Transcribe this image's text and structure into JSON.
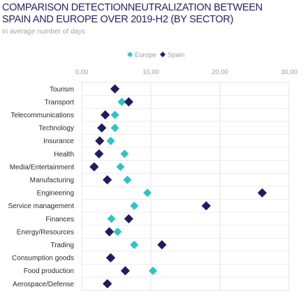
{
  "chart_data": {
    "type": "scatter",
    "title": "COMPARISON DETECTIONNEUTRALIZATION BETWEEN\nSPAIN AND EUROPE OVER 2019-H2 (BY SECTOR)",
    "subtitle": "In average number of days",
    "xlim": [
      0,
      30
    ],
    "x_ticks": [
      "0,00",
      "10,00",
      "20,00",
      "30,00"
    ],
    "x_tick_values": [
      0,
      10,
      20,
      30
    ],
    "legend_position": "top-center",
    "grid": true,
    "categories": [
      "Tourism",
      "Transport",
      "Telecommunications",
      "Technology",
      "Insurance",
      "Health",
      "Media/Entertainment",
      "Manufacturing",
      "Engineering",
      "Service management",
      "Finances",
      "Energy/Resources",
      "Trading",
      "Consumption goods",
      "Food production",
      "Aerospace/Defense"
    ],
    "series": [
      {
        "name": "Europe",
        "color": "#2ec4c4",
        "marker": "diamond",
        "values": [
          4.8,
          5.8,
          4.8,
          4.8,
          4.2,
          6.2,
          5.6,
          6.6,
          9.5,
          7.6,
          4.3,
          5.2,
          7.6,
          4.1,
          10.3,
          3.8
        ]
      },
      {
        "name": "Spain",
        "color": "#241a63",
        "marker": "diamond",
        "values": [
          4.8,
          6.8,
          3.4,
          2.9,
          2.6,
          2.5,
          1.8,
          3.7,
          26.1,
          18.0,
          6.8,
          4.0,
          11.6,
          4.2,
          6.3,
          3.7
        ]
      }
    ]
  }
}
